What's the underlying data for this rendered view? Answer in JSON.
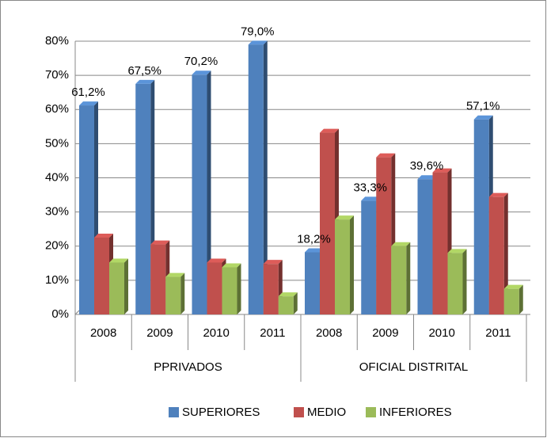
{
  "chart_data": {
    "type": "bar3d",
    "categories": [
      "2008",
      "2009",
      "2010",
      "2011",
      "2008",
      "2009",
      "2010",
      "2011"
    ],
    "groups": [
      "PPRIVADOS",
      "OFICIAL DISTRITAL"
    ],
    "series": [
      {
        "name": "SUPERIORES",
        "color": "#4f81bd",
        "values": [
          61.2,
          67.5,
          70.2,
          79.0,
          18.2,
          33.3,
          39.6,
          57.1
        ],
        "value_labels": [
          "61,2%",
          "67,5%",
          "70,2%",
          "79,0%",
          "18,2%",
          "33,3%",
          "39,6%",
          "57,1%"
        ]
      },
      {
        "name": "MEDIO",
        "color": "#c0504d",
        "values": [
          22.5,
          20.5,
          15.2,
          14.8,
          53.2,
          46.0,
          41.6,
          34.4
        ]
      },
      {
        "name": "INFERIORES",
        "color": "#9bbb59",
        "values": [
          15.2,
          11.0,
          13.8,
          5.3,
          27.8,
          20.0,
          18.0,
          7.5
        ]
      }
    ],
    "ylim": [
      0,
      80
    ],
    "yticks": [
      {
        "value": 0,
        "label": "0%"
      },
      {
        "value": 10,
        "label": "10%"
      },
      {
        "value": 20,
        "label": "20%"
      },
      {
        "value": 30,
        "label": "30%"
      },
      {
        "value": 40,
        "label": "40%"
      },
      {
        "value": 50,
        "label": "50%"
      },
      {
        "value": 60,
        "label": "60%"
      },
      {
        "value": 70,
        "label": "70%"
      },
      {
        "value": 80,
        "label": "80%"
      }
    ],
    "grid": true,
    "legend": "bottom"
  }
}
